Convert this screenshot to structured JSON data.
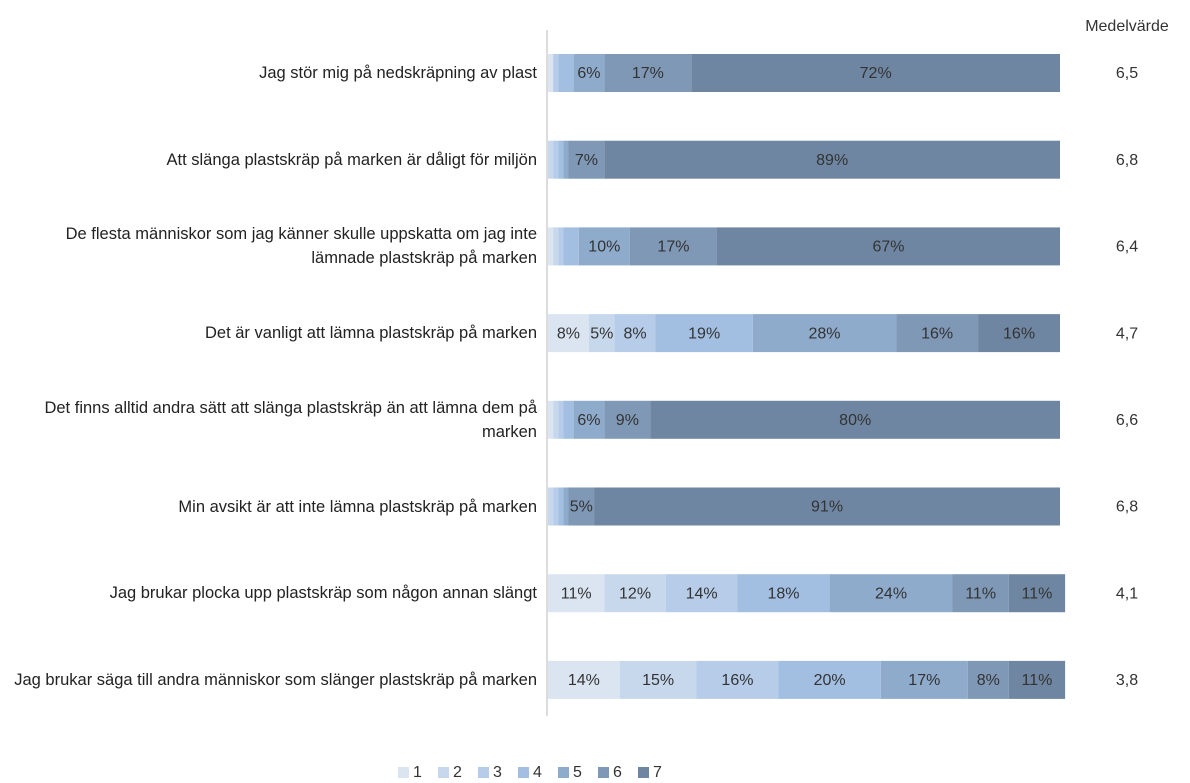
{
  "chart_data": {
    "type": "stacked_bar_100",
    "mean_header": "Medelvärde",
    "categories": [
      "Jag stör mig på nedskräpning av plast",
      "Att slänga plastskräp på marken är dåligt för miljön",
      "De flesta människor som jag känner skulle uppskatta om jag inte lämnade plastskräp på marken",
      "Det är vanligt att lämna plastskräp på marken",
      "Det finns alltid andra sätt att slänga plastskräp än att lämna dem på marken",
      "Min avsikt är att inte lämna plastskräp på marken",
      "Jag brukar plocka upp plastskräp som någon annan slängt",
      "Jag brukar säga till andra människor som slänger plastskräp på marken"
    ],
    "xlim": [
      0,
      100
    ],
    "series": [
      {
        "name": "1",
        "color": "#dbe5f1",
        "values": [
          1,
          0,
          1,
          8,
          1,
          0,
          11,
          14
        ],
        "value_labels": [
          null,
          null,
          null,
          "8%",
          null,
          null,
          "11%",
          "14%"
        ]
      },
      {
        "name": "2",
        "color": "#c8d8ec",
        "values": [
          0,
          1,
          1,
          5,
          1,
          1,
          12,
          15
        ],
        "value_labels": [
          null,
          null,
          null,
          "5%",
          null,
          null,
          "12%",
          "15%"
        ]
      },
      {
        "name": "3",
        "color": "#b6cce8",
        "values": [
          1,
          1,
          1,
          8,
          1,
          1,
          14,
          16
        ],
        "value_labels": [
          null,
          null,
          null,
          "8%",
          null,
          null,
          "14%",
          "16%"
        ]
      },
      {
        "name": "4",
        "color": "#a2bfe2",
        "values": [
          3,
          1,
          3,
          19,
          2,
          1,
          18,
          20
        ],
        "value_labels": [
          null,
          null,
          null,
          "19%",
          null,
          null,
          "18%",
          "20%"
        ]
      },
      {
        "name": "5",
        "color": "#8eabcc",
        "values": [
          6,
          1,
          10,
          28,
          6,
          1,
          24,
          17
        ],
        "value_labels": [
          "6%",
          null,
          "10%",
          "28%",
          "6%",
          null,
          "24%",
          "17%"
        ]
      },
      {
        "name": "6",
        "color": "#7e98b6",
        "values": [
          17,
          7,
          17,
          16,
          9,
          5,
          11,
          8
        ],
        "value_labels": [
          "17%",
          "7%",
          "17%",
          "16%",
          "9%",
          "5%",
          "11%",
          "8%"
        ]
      },
      {
        "name": "7",
        "color": "#6f86a2",
        "values": [
          72,
          89,
          67,
          16,
          80,
          91,
          11,
          11
        ],
        "value_labels": [
          "72%",
          "89%",
          "67%",
          "16%",
          "80%",
          "91%",
          "11%",
          "11%"
        ]
      }
    ],
    "means": {
      "values": [
        6.5,
        6.8,
        6.4,
        4.7,
        6.6,
        6.8,
        4.1,
        3.8
      ],
      "value_labels": [
        "6,5",
        "6,8",
        "6,4",
        "4,7",
        "6,6",
        "6,8",
        "4,1",
        "3,8"
      ]
    }
  }
}
